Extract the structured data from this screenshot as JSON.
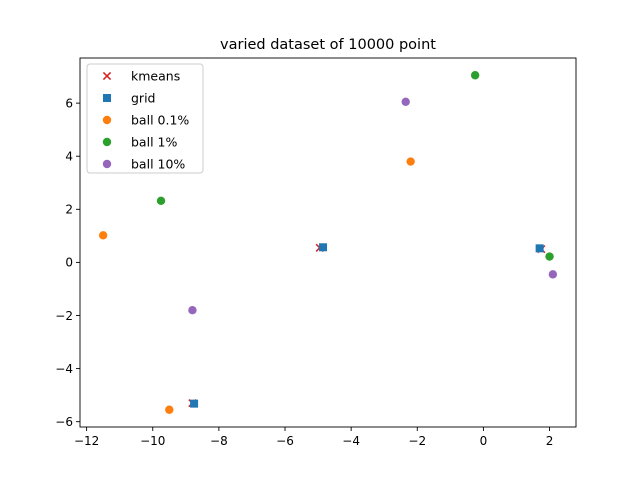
{
  "chart_data": {
    "type": "scatter",
    "title": "varied dataset of 10000 point",
    "xlabel": "",
    "ylabel": "",
    "xlim": [
      -12.2,
      2.8
    ],
    "ylim": [
      -6.2,
      7.7
    ],
    "xticks": [
      -12,
      -10,
      -8,
      -6,
      -4,
      -2,
      0,
      2
    ],
    "yticks": [
      -6,
      -4,
      -2,
      0,
      2,
      4,
      6
    ],
    "xtick_labels": [
      "−12",
      "−10",
      "−8",
      "−6",
      "−4",
      "−2",
      "0",
      "2"
    ],
    "ytick_labels": [
      "−6",
      "−4",
      "−2",
      "0",
      "2",
      "4",
      "6"
    ],
    "grid": false,
    "legend_position": "top-left",
    "series": [
      {
        "name": "kmeans",
        "marker": "x",
        "color": "#d62728",
        "points": [
          [
            -4.95,
            0.55
          ],
          [
            1.75,
            0.5
          ],
          [
            -8.8,
            -5.3
          ]
        ]
      },
      {
        "name": "grid",
        "marker": "square",
        "color": "#1f77b4",
        "points": [
          [
            -4.85,
            0.57
          ],
          [
            1.7,
            0.53
          ],
          [
            -8.75,
            -5.32
          ]
        ]
      },
      {
        "name": "ball 0.1%",
        "marker": "circle",
        "color": "#ff7f0e",
        "points": [
          [
            -11.5,
            1.02
          ],
          [
            -9.5,
            -5.55
          ],
          [
            -2.2,
            3.8
          ]
        ]
      },
      {
        "name": "ball 1%",
        "marker": "circle",
        "color": "#2ca02c",
        "points": [
          [
            -9.75,
            2.32
          ],
          [
            -0.25,
            7.05
          ],
          [
            2.0,
            0.22
          ]
        ]
      },
      {
        "name": "ball 10%",
        "marker": "circle",
        "color": "#9467bd",
        "points": [
          [
            -8.8,
            -1.8
          ],
          [
            -2.35,
            6.05
          ],
          [
            2.1,
            -0.45
          ]
        ]
      }
    ]
  }
}
